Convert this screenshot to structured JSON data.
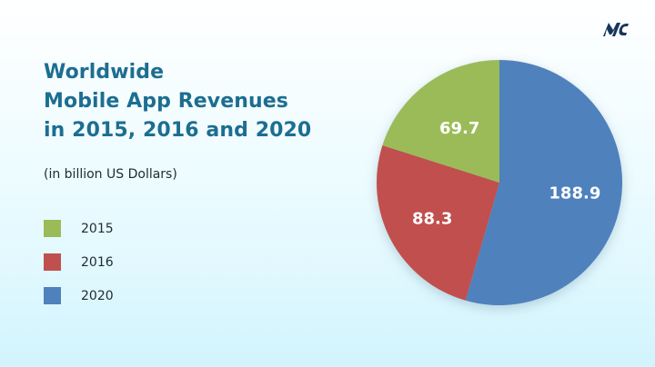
{
  "colors": {
    "title": "#1c6e91",
    "text": "#1f2b33",
    "series_2015": "#9bbb59",
    "series_2016": "#c0504d",
    "series_2020": "#4f81bd",
    "logo": "#16355a"
  },
  "logo": {
    "icon": "mc-logo-icon"
  },
  "chart_data": {
    "type": "pie",
    "title_lines": [
      "Worldwide",
      "Mobile App Revenues",
      "in 2015, 2016 and 2020"
    ],
    "subtitle": "(in billion US Dollars)",
    "legend_position": "left",
    "slices": [
      {
        "label": "2015",
        "value": 69.7,
        "value_label": "69.7",
        "color": "#9bbb59"
      },
      {
        "label": "2016",
        "value": 88.3,
        "value_label": "88.3",
        "color": "#c0504d"
      },
      {
        "label": "2020",
        "value": 188.9,
        "value_label": "188.9",
        "color": "#4f81bd"
      }
    ]
  }
}
